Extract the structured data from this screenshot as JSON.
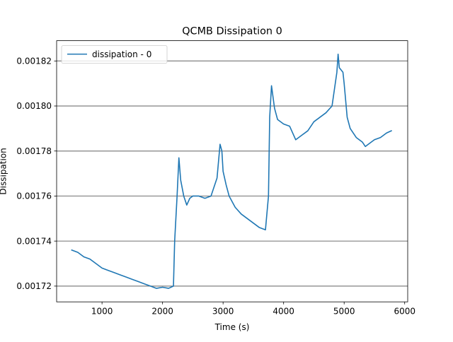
{
  "chart_data": {
    "type": "line",
    "title": "QCMB Dissipation 0",
    "xlabel": "Time (s)",
    "ylabel": "Dissipation",
    "xlim": [
      250,
      6050
    ],
    "ylim": [
      0.001713,
      0.001829
    ],
    "xticks": [
      1000,
      2000,
      3000,
      4000,
      5000,
      6000
    ],
    "xtick_labels": [
      "1000",
      "2000",
      "3000",
      "4000",
      "5000",
      "6000"
    ],
    "yticks": [
      0.00172,
      0.00174,
      0.00176,
      0.00178,
      0.0018,
      0.00182
    ],
    "ytick_labels": [
      "0.00172",
      "0.00174",
      "0.00176",
      "0.00178",
      "0.00180",
      "0.00182"
    ],
    "grid": "y-major",
    "legend_position": "top-left",
    "series": [
      {
        "name": "dissipation - 0",
        "color": "#1f77b4",
        "x": [
          500,
          600,
          700,
          800,
          900,
          1000,
          1100,
          1200,
          1300,
          1400,
          1500,
          1600,
          1700,
          1800,
          1900,
          2000,
          2100,
          2180,
          2200,
          2240,
          2270,
          2300,
          2350,
          2400,
          2450,
          2500,
          2600,
          2700,
          2800,
          2900,
          2950,
          2980,
          3000,
          3050,
          3100,
          3200,
          3300,
          3400,
          3500,
          3600,
          3700,
          3750,
          3770,
          3800,
          3820,
          3850,
          3900,
          4000,
          4100,
          4200,
          4300,
          4400,
          4500,
          4600,
          4700,
          4800,
          4880,
          4900,
          4920,
          4950,
          4980,
          5000,
          5050,
          5100,
          5200,
          5300,
          5350,
          5400,
          5500,
          5600,
          5700,
          5780
        ],
        "y": [
          0.001736,
          0.001735,
          0.001733,
          0.001732,
          0.00173,
          0.001728,
          0.001727,
          0.001726,
          0.001725,
          0.001724,
          0.001723,
          0.001722,
          0.001721,
          0.00172,
          0.001719,
          0.0017195,
          0.001719,
          0.00172,
          0.00174,
          0.00176,
          0.001777,
          0.001767,
          0.00176,
          0.001756,
          0.001759,
          0.00176,
          0.00176,
          0.001759,
          0.00176,
          0.001768,
          0.001783,
          0.00178,
          0.001771,
          0.001765,
          0.00176,
          0.001755,
          0.001752,
          0.00175,
          0.001748,
          0.001746,
          0.001745,
          0.00176,
          0.001795,
          0.001809,
          0.001805,
          0.001799,
          0.001794,
          0.001792,
          0.001791,
          0.001785,
          0.001787,
          0.001789,
          0.001793,
          0.001795,
          0.001797,
          0.0018,
          0.001815,
          0.001823,
          0.001817,
          0.001816,
          0.001815,
          0.00181,
          0.001795,
          0.00179,
          0.001786,
          0.001784,
          0.001782,
          0.001783,
          0.001785,
          0.001786,
          0.001788,
          0.001789
        ]
      }
    ]
  }
}
